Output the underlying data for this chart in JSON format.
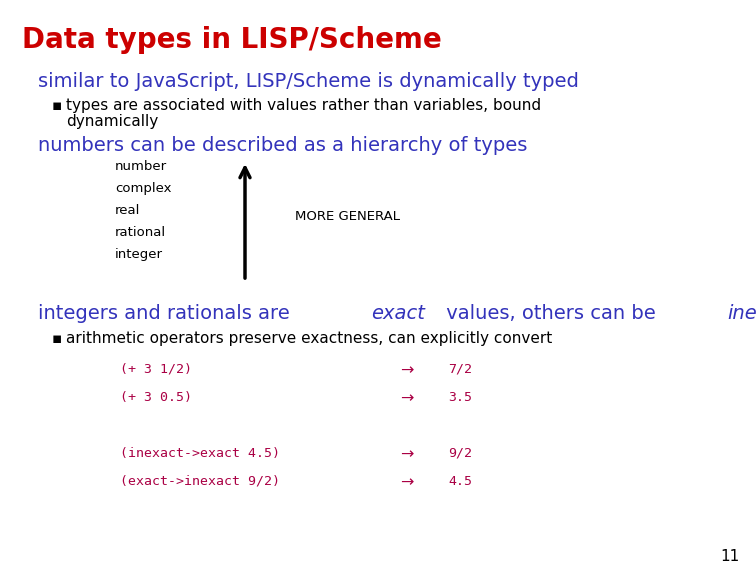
{
  "title": "Data types in LISP/Scheme",
  "title_color": "#cc0000",
  "title_fontsize": 20,
  "bg_color": "#ffffff",
  "slide_number": "11",
  "section1_text": "similar to JavaScript, LISP/Scheme is dynamically typed",
  "section1_color": "#3333bb",
  "section1_fontsize": 14,
  "bullet1_line1": "types are associated with values rather than variables, bound",
  "bullet1_line2": "dynamically",
  "bullet1_color": "#000000",
  "bullet1_fontsize": 11,
  "section2_text": "numbers can be described as a hierarchy of types",
  "section2_color": "#3333bb",
  "section2_fontsize": 14,
  "hierarchy_labels": [
    "number",
    "complex",
    "real",
    "rational",
    "integer"
  ],
  "hierarchy_label_color": "#000000",
  "hierarchy_label_fontsize": 9.5,
  "more_general_text": "MORE GENERAL",
  "more_general_color": "#000000",
  "more_general_fontsize": 9.5,
  "section3_color": "#3333bb",
  "section3_fontsize": 14,
  "bullet2_text": "arithmetic operators preserve exactness, can explicitly convert",
  "bullet2_color": "#000000",
  "bullet2_fontsize": 11,
  "code_color": "#aa0044",
  "code_fontsize": 9.5,
  "arrow_color": "#aa0044",
  "code_lines": [
    {
      "left": "(+ 3 1/2)",
      "right": "7/2"
    },
    {
      "left": "(+ 3 0.5)",
      "right": "3.5"
    },
    {
      "left": "",
      "right": ""
    },
    {
      "left": "(inexact->exact 4.5)",
      "right": "9/2"
    },
    {
      "left": "(exact->inexact 9/2)",
      "right": "4.5"
    }
  ]
}
